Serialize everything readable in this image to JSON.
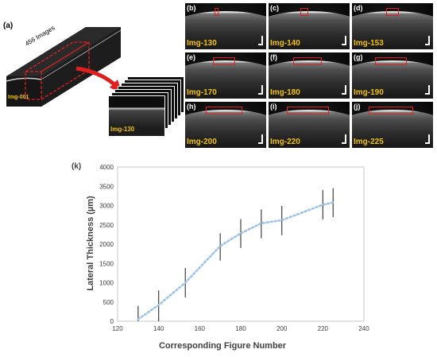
{
  "panel_a": {
    "label": "(a)",
    "volume_label": "456 Images",
    "first_image_tag": "Img-001",
    "selected_image_tag": "Img-130"
  },
  "tiles": [
    {
      "letter": "(b)",
      "tag": "Img-130",
      "roi_width_fraction": 0.02
    },
    {
      "letter": "(c)",
      "tag": "Img-140",
      "roi_width_fraction": 0.08
    },
    {
      "letter": "(d)",
      "tag": "Img-153",
      "roi_width_fraction": 0.14
    },
    {
      "letter": "(e)",
      "tag": "Img-170",
      "roi_width_fraction": 0.26
    },
    {
      "letter": "(f)",
      "tag": "Img-180",
      "roi_width_fraction": 0.34
    },
    {
      "letter": "(g)",
      "tag": "Img-190",
      "roi_width_fraction": 0.38
    },
    {
      "letter": "(h)",
      "tag": "Img-200",
      "roi_width_fraction": 0.44
    },
    {
      "letter": "(i)",
      "tag": "Img-220",
      "roi_width_fraction": 0.5
    },
    {
      "letter": "(j)",
      "tag": "Img-225",
      "roi_width_fraction": 0.52
    }
  ],
  "colors": {
    "tag": "#f2c200",
    "roi": "#e02020",
    "series": "#9dc3e6",
    "error_bar": "#404040",
    "arrow": "#e02020"
  },
  "chart_data": {
    "type": "line",
    "panel_label": "(k)",
    "xlabel": "Corresponding Figure Number",
    "ylabel": "Lateral Thickness (µm)",
    "xlim": [
      120,
      240
    ],
    "ylim": [
      0,
      4000
    ],
    "xticks": [
      "120",
      "140",
      "160",
      "180",
      "200",
      "220",
      "240"
    ],
    "yticks": [
      "0",
      "500",
      "1000",
      "1500",
      "2000",
      "2500",
      "3000",
      "3500",
      "4000"
    ],
    "line_style": "dotted",
    "grid": false,
    "series": [
      {
        "x": [
          130,
          140,
          153,
          170,
          180,
          190,
          200,
          220,
          225
        ],
        "y": [
          50,
          420,
          1000,
          1950,
          2280,
          2540,
          2620,
          3020,
          3080
        ],
        "err_low": [
          -300,
          0,
          620,
          1570,
          1900,
          2150,
          2230,
          2640,
          2700
        ],
        "err_high": [
          400,
          800,
          1380,
          2280,
          2650,
          2900,
          2990,
          3400,
          3450
        ]
      }
    ]
  }
}
